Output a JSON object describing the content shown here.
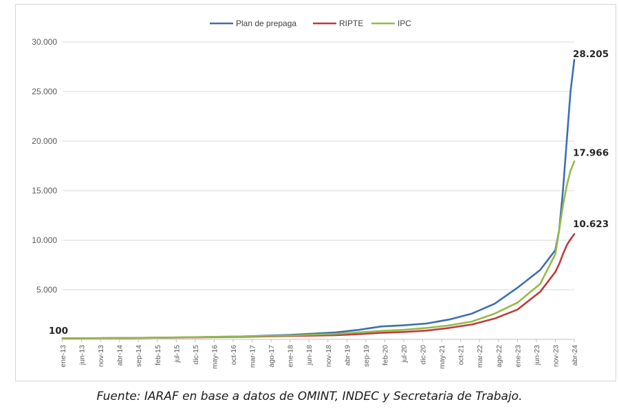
{
  "chart_data": {
    "type": "line",
    "title": "",
    "xlabel": "",
    "ylabel": "",
    "ylim": [
      0,
      30000
    ],
    "yticks": [
      "",
      "5.000",
      "10.000",
      "15.000",
      "20.000",
      "25.000",
      "30.000"
    ],
    "ytick_values": [
      0,
      5000,
      10000,
      15000,
      20000,
      25000,
      30000
    ],
    "x_start": "ene-13",
    "x_end": "abr-24",
    "xticks": [
      "ene-13",
      "jun-13",
      "nov-13",
      "abr-14",
      "sep-14",
      "feb-15",
      "jul-15",
      "dic-15",
      "may-16",
      "oct-16",
      "mar-17",
      "ago-17",
      "ene-18",
      "jun-18",
      "nov-18",
      "abr-19",
      "sep-19",
      "feb-20",
      "jul-20",
      "dic-20",
      "may-21",
      "oct-21",
      "mar-22",
      "ago-22",
      "ene-23",
      "jun-23",
      "nov-23",
      "abr-24"
    ],
    "grid": true,
    "legend_position": "top-center",
    "series": [
      {
        "name": "Plan de prepaga",
        "color": "#3b6fb0",
        "x": [
          "ene-13",
          "ene-14",
          "ene-15",
          "ene-16",
          "ene-17",
          "ene-18",
          "ene-19",
          "jul-19",
          "ene-20",
          "jul-20",
          "ene-21",
          "jul-21",
          "ene-22",
          "jul-22",
          "ene-23",
          "jul-23",
          "nov-23",
          "dic-23",
          "ene-24",
          "feb-24",
          "mar-24",
          "abr-24"
        ],
        "y": [
          100,
          125,
          160,
          220,
          300,
          450,
          700,
          950,
          1300,
          1420,
          1600,
          2000,
          2600,
          3600,
          5200,
          7000,
          9000,
          11000,
          15000,
          20000,
          25000,
          28205
        ]
      },
      {
        "name": "RIPTE",
        "color": "#c0393b",
        "x": [
          "ene-13",
          "ene-14",
          "ene-15",
          "ene-16",
          "ene-17",
          "ene-18",
          "ene-19",
          "jul-19",
          "ene-20",
          "jul-20",
          "ene-21",
          "jul-21",
          "ene-22",
          "jul-22",
          "ene-23",
          "jul-23",
          "nov-23",
          "dic-23",
          "ene-24",
          "feb-24",
          "mar-24",
          "abr-24"
        ],
        "y": [
          100,
          125,
          160,
          200,
          260,
          330,
          420,
          520,
          650,
          740,
          880,
          1150,
          1500,
          2100,
          3000,
          4800,
          6800,
          7600,
          8600,
          9500,
          10100,
          10623
        ]
      },
      {
        "name": "IPC",
        "color": "#95b94b",
        "x": [
          "ene-13",
          "ene-14",
          "ene-15",
          "ene-16",
          "ene-17",
          "ene-18",
          "ene-19",
          "jul-19",
          "ene-20",
          "jul-20",
          "ene-21",
          "jul-21",
          "ene-22",
          "jul-22",
          "ene-23",
          "jul-23",
          "nov-23",
          "dic-23",
          "ene-24",
          "feb-24",
          "mar-24",
          "abr-24"
        ],
        "y": [
          100,
          130,
          170,
          230,
          300,
          380,
          550,
          700,
          850,
          960,
          1150,
          1400,
          1800,
          2600,
          3700,
          5600,
          8600,
          11000,
          13500,
          15500,
          17000,
          17966
        ]
      }
    ],
    "annotations": [
      {
        "text": "28.205",
        "series": "Plan de prepaga"
      },
      {
        "text": "17.966",
        "series": "IPC"
      },
      {
        "text": "10.623",
        "series": "RIPTE"
      },
      {
        "text": "100",
        "series": "start"
      }
    ]
  },
  "source_note": "Fuente: IARAF en base a datos de OMINT, INDEC y Secretaria de Trabajo."
}
